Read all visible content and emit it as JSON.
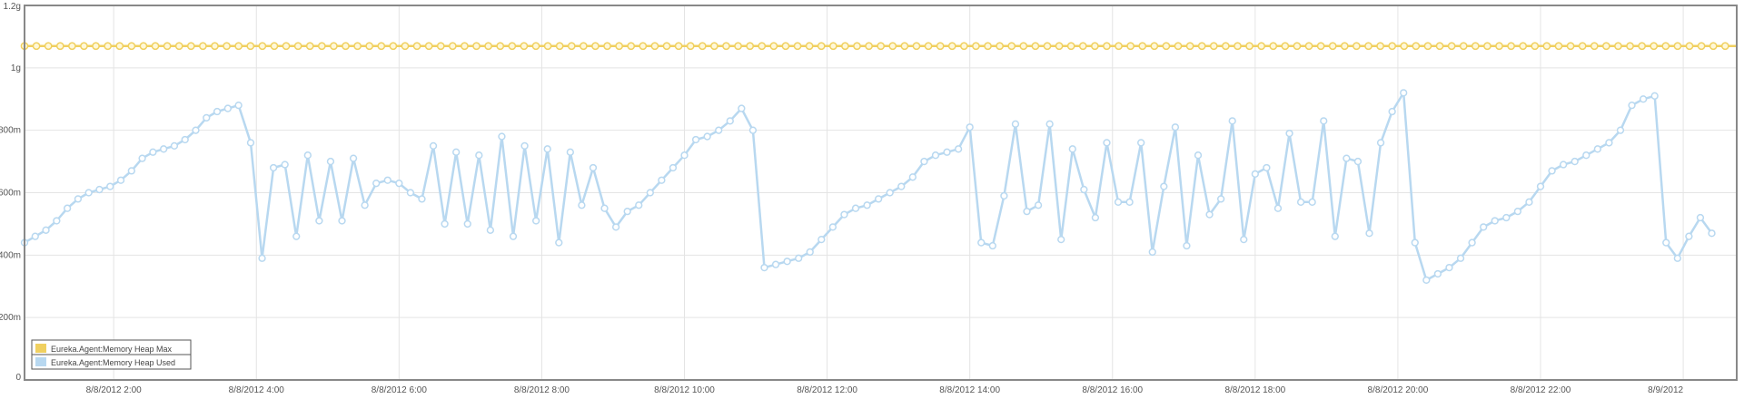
{
  "chart_data": {
    "type": "line",
    "title": "",
    "xlabel": "",
    "ylabel": "",
    "ylim": [
      0,
      1.2
    ],
    "y_ticks": [
      {
        "value": 0,
        "label": "0"
      },
      {
        "value": 0.2,
        "label": "200m"
      },
      {
        "value": 0.4,
        "label": "400m"
      },
      {
        "value": 0.6,
        "label": "600m"
      },
      {
        "value": 0.8,
        "label": "800m"
      },
      {
        "value": 1.0,
        "label": "1g"
      },
      {
        "value": 1.2,
        "label": "1.2g"
      }
    ],
    "x_range_hours": [
      0.75,
      24.75
    ],
    "x_ticks": [
      {
        "value": 2,
        "label": "8/8/2012 2:00"
      },
      {
        "value": 4,
        "label": "8/8/2012 4:00"
      },
      {
        "value": 6,
        "label": "8/8/2012 6:00"
      },
      {
        "value": 8,
        "label": "8/8/2012 8:00"
      },
      {
        "value": 10,
        "label": "8/8/2012 10:00"
      },
      {
        "value": 12,
        "label": "8/8/2012 12:00"
      },
      {
        "value": 14,
        "label": "8/8/2012 14:00"
      },
      {
        "value": 16,
        "label": "8/8/2012 16:00"
      },
      {
        "value": 18,
        "label": "8/8/2012 18:00"
      },
      {
        "value": 20,
        "label": "8/8/2012 20:00"
      },
      {
        "value": 22,
        "label": "8/8/2012 22:00"
      },
      {
        "value": 24,
        "label": "8/9/2012"
      }
    ],
    "grid": true,
    "legend_position": "bottom-left",
    "series": [
      {
        "name": "Eureka.Agent:Memory Heap Max",
        "color": "#f0d060",
        "constant_value": 1.07,
        "point_step_hours": 0.1667
      },
      {
        "name": "Eureka.Agent:Memory Heap Used",
        "color": "#b8d8f0",
        "points": [
          [
            0.75,
            0.44
          ],
          [
            0.9,
            0.46
          ],
          [
            1.05,
            0.48
          ],
          [
            1.2,
            0.51
          ],
          [
            1.35,
            0.55
          ],
          [
            1.5,
            0.58
          ],
          [
            1.65,
            0.6
          ],
          [
            1.8,
            0.61
          ],
          [
            1.95,
            0.62
          ],
          [
            2.1,
            0.64
          ],
          [
            2.25,
            0.67
          ],
          [
            2.4,
            0.71
          ],
          [
            2.55,
            0.73
          ],
          [
            2.7,
            0.74
          ],
          [
            2.85,
            0.75
          ],
          [
            3.0,
            0.77
          ],
          [
            3.15,
            0.8
          ],
          [
            3.3,
            0.84
          ],
          [
            3.45,
            0.86
          ],
          [
            3.6,
            0.87
          ],
          [
            3.75,
            0.88
          ],
          [
            3.92,
            0.76
          ],
          [
            4.08,
            0.39
          ],
          [
            4.24,
            0.68
          ],
          [
            4.4,
            0.69
          ],
          [
            4.56,
            0.46
          ],
          [
            4.72,
            0.72
          ],
          [
            4.88,
            0.51
          ],
          [
            5.04,
            0.7
          ],
          [
            5.2,
            0.51
          ],
          [
            5.36,
            0.71
          ],
          [
            5.52,
            0.56
          ],
          [
            5.68,
            0.63
          ],
          [
            5.84,
            0.64
          ],
          [
            6.0,
            0.63
          ],
          [
            6.16,
            0.6
          ],
          [
            6.32,
            0.58
          ],
          [
            6.48,
            0.75
          ],
          [
            6.64,
            0.5
          ],
          [
            6.8,
            0.73
          ],
          [
            6.96,
            0.5
          ],
          [
            7.12,
            0.72
          ],
          [
            7.28,
            0.48
          ],
          [
            7.44,
            0.78
          ],
          [
            7.6,
            0.46
          ],
          [
            7.76,
            0.75
          ],
          [
            7.92,
            0.51
          ],
          [
            8.08,
            0.74
          ],
          [
            8.24,
            0.44
          ],
          [
            8.4,
            0.73
          ],
          [
            8.56,
            0.56
          ],
          [
            8.72,
            0.68
          ],
          [
            8.88,
            0.55
          ],
          [
            9.04,
            0.49
          ],
          [
            9.2,
            0.54
          ],
          [
            9.36,
            0.56
          ],
          [
            9.52,
            0.6
          ],
          [
            9.68,
            0.64
          ],
          [
            9.84,
            0.68
          ],
          [
            10.0,
            0.72
          ],
          [
            10.16,
            0.77
          ],
          [
            10.32,
            0.78
          ],
          [
            10.48,
            0.8
          ],
          [
            10.64,
            0.83
          ],
          [
            10.8,
            0.87
          ],
          [
            10.96,
            0.8
          ],
          [
            11.12,
            0.36
          ],
          [
            11.28,
            0.37
          ],
          [
            11.44,
            0.38
          ],
          [
            11.6,
            0.39
          ],
          [
            11.76,
            0.41
          ],
          [
            11.92,
            0.45
          ],
          [
            12.08,
            0.49
          ],
          [
            12.24,
            0.53
          ],
          [
            12.4,
            0.55
          ],
          [
            12.56,
            0.56
          ],
          [
            12.72,
            0.58
          ],
          [
            12.88,
            0.6
          ],
          [
            13.04,
            0.62
          ],
          [
            13.2,
            0.65
          ],
          [
            13.36,
            0.7
          ],
          [
            13.52,
            0.72
          ],
          [
            13.68,
            0.73
          ],
          [
            13.84,
            0.74
          ],
          [
            14.0,
            0.81
          ],
          [
            14.16,
            0.44
          ],
          [
            14.32,
            0.43
          ],
          [
            14.48,
            0.59
          ],
          [
            14.64,
            0.82
          ],
          [
            14.8,
            0.54
          ],
          [
            14.96,
            0.56
          ],
          [
            15.12,
            0.82
          ],
          [
            15.28,
            0.45
          ],
          [
            15.44,
            0.74
          ],
          [
            15.6,
            0.61
          ],
          [
            15.76,
            0.52
          ],
          [
            15.92,
            0.76
          ],
          [
            16.08,
            0.57
          ],
          [
            16.24,
            0.57
          ],
          [
            16.4,
            0.76
          ],
          [
            16.56,
            0.41
          ],
          [
            16.72,
            0.62
          ],
          [
            16.88,
            0.81
          ],
          [
            17.04,
            0.43
          ],
          [
            17.2,
            0.72
          ],
          [
            17.36,
            0.53
          ],
          [
            17.52,
            0.58
          ],
          [
            17.68,
            0.83
          ],
          [
            17.84,
            0.45
          ],
          [
            18.0,
            0.66
          ],
          [
            18.16,
            0.68
          ],
          [
            18.32,
            0.55
          ],
          [
            18.48,
            0.79
          ],
          [
            18.64,
            0.57
          ],
          [
            18.8,
            0.57
          ],
          [
            18.96,
            0.83
          ],
          [
            19.12,
            0.46
          ],
          [
            19.28,
            0.71
          ],
          [
            19.44,
            0.7
          ],
          [
            19.6,
            0.47
          ],
          [
            19.76,
            0.76
          ],
          [
            19.92,
            0.86
          ],
          [
            20.08,
            0.92
          ],
          [
            20.24,
            0.44
          ],
          [
            20.4,
            0.32
          ],
          [
            20.56,
            0.34
          ],
          [
            20.72,
            0.36
          ],
          [
            20.88,
            0.39
          ],
          [
            21.04,
            0.44
          ],
          [
            21.2,
            0.49
          ],
          [
            21.36,
            0.51
          ],
          [
            21.52,
            0.52
          ],
          [
            21.68,
            0.54
          ],
          [
            21.84,
            0.57
          ],
          [
            22.0,
            0.62
          ],
          [
            22.16,
            0.67
          ],
          [
            22.32,
            0.69
          ],
          [
            22.48,
            0.7
          ],
          [
            22.64,
            0.72
          ],
          [
            22.8,
            0.74
          ],
          [
            22.96,
            0.76
          ],
          [
            23.12,
            0.8
          ],
          [
            23.28,
            0.88
          ],
          [
            23.44,
            0.9
          ],
          [
            23.6,
            0.91
          ],
          [
            23.76,
            0.44
          ],
          [
            23.92,
            0.39
          ],
          [
            24.08,
            0.46
          ],
          [
            24.24,
            0.52
          ],
          [
            24.4,
            0.47
          ]
        ]
      }
    ]
  }
}
